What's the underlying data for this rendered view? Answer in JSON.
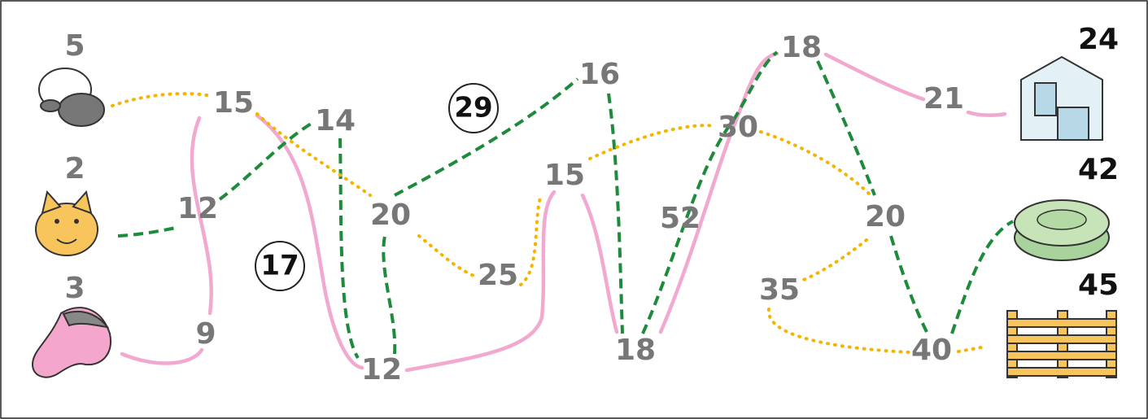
{
  "animals": [
    5,
    2,
    3
  ],
  "destinations": [
    24,
    42,
    45
  ],
  "nodes": [
    15,
    14,
    16,
    18,
    12,
    20,
    25,
    15,
    30,
    52,
    21,
    20,
    35,
    18,
    40,
    12,
    9
  ],
  "circles": [
    29,
    17
  ]
}
